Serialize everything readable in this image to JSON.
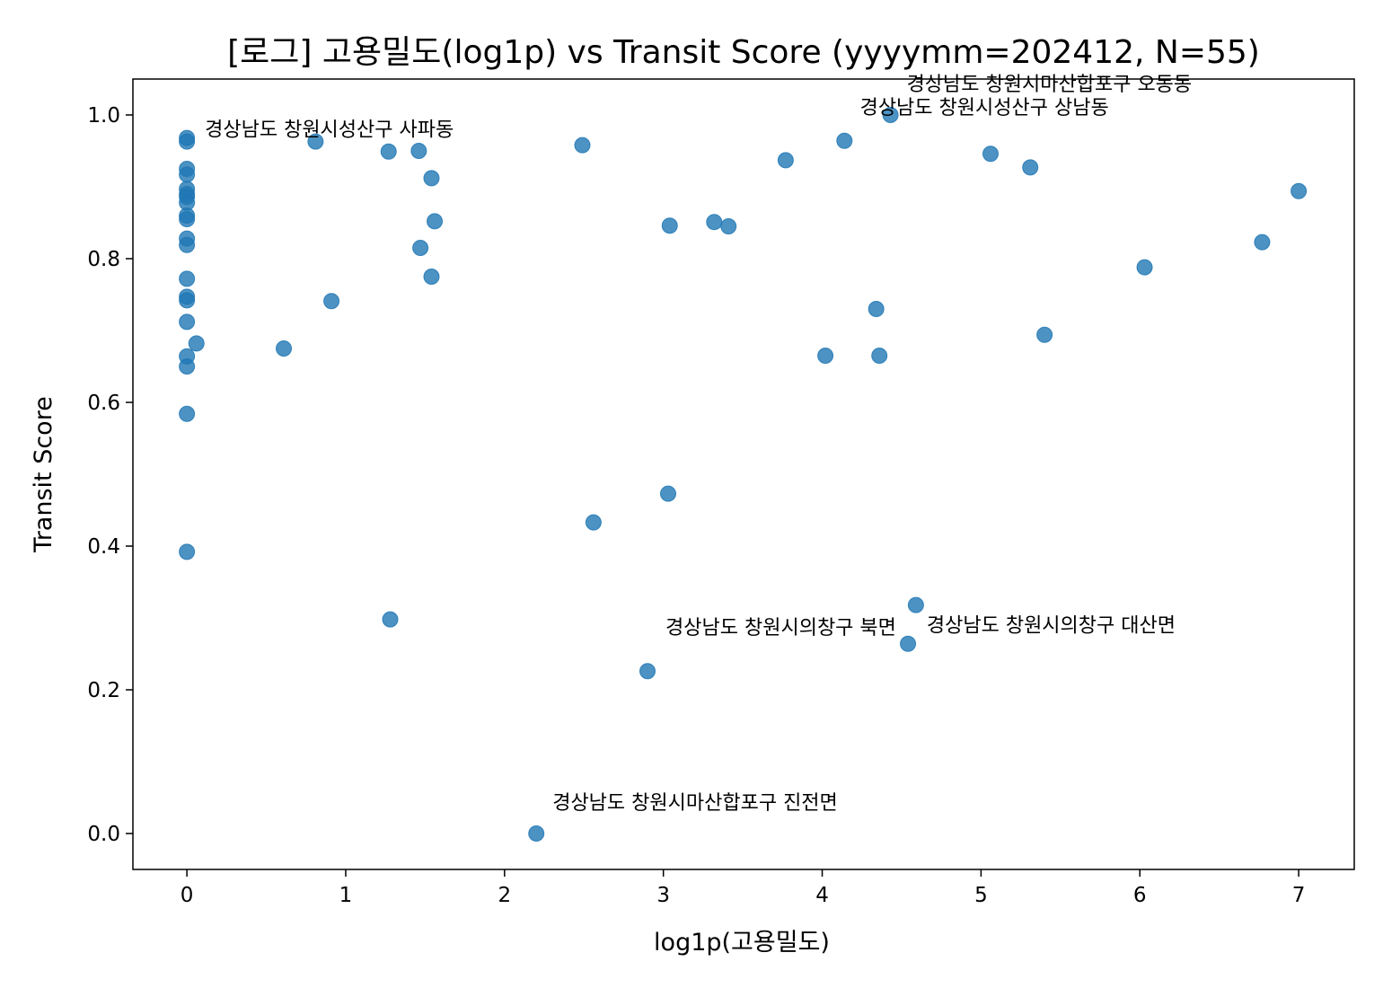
{
  "chart_data": {
    "type": "scatter",
    "title": "[로그] 고용밀도(log1p) vs Transit Score (yyyymm=202412, N=55)",
    "xlabel": "log1p(고용밀도)",
    "ylabel": "Transit Score",
    "xlim": [
      -0.34,
      7.35
    ],
    "ylim": [
      -0.05,
      1.05
    ],
    "xticks": [
      0,
      1,
      2,
      3,
      4,
      5,
      6,
      7
    ],
    "yticks": [
      0.0,
      0.2,
      0.4,
      0.6,
      0.8,
      1.0
    ],
    "xtick_labels": [
      "0",
      "1",
      "2",
      "3",
      "4",
      "5",
      "6",
      "7"
    ],
    "ytick_labels": [
      "0.0",
      "0.2",
      "0.4",
      "0.6",
      "0.8",
      "1.0"
    ],
    "grid": false,
    "colors": {
      "point": "#1f77b4"
    },
    "points": [
      {
        "x": 0.0,
        "y": 0.968
      },
      {
        "x": 0.0,
        "y": 0.963
      },
      {
        "x": 0.0,
        "y": 0.925
      },
      {
        "x": 0.0,
        "y": 0.917
      },
      {
        "x": 0.0,
        "y": 0.897
      },
      {
        "x": 0.0,
        "y": 0.89
      },
      {
        "x": 0.0,
        "y": 0.886
      },
      {
        "x": 0.0,
        "y": 0.878
      },
      {
        "x": 0.0,
        "y": 0.86
      },
      {
        "x": 0.0,
        "y": 0.855
      },
      {
        "x": 0.0,
        "y": 0.828
      },
      {
        "x": 0.0,
        "y": 0.819
      },
      {
        "x": 0.0,
        "y": 0.772
      },
      {
        "x": 0.0,
        "y": 0.747
      },
      {
        "x": 0.0,
        "y": 0.742
      },
      {
        "x": 0.0,
        "y": 0.712
      },
      {
        "x": 0.0,
        "y": 0.664
      },
      {
        "x": 0.0,
        "y": 0.65
      },
      {
        "x": 0.0,
        "y": 0.584
      },
      {
        "x": 0.0,
        "y": 0.392
      },
      {
        "x": 0.06,
        "y": 0.682
      },
      {
        "x": 0.61,
        "y": 0.675
      },
      {
        "x": 0.81,
        "y": 0.963
      },
      {
        "x": 0.91,
        "y": 0.741
      },
      {
        "x": 1.27,
        "y": 0.949
      },
      {
        "x": 1.28,
        "y": 0.298
      },
      {
        "x": 1.46,
        "y": 0.95
      },
      {
        "x": 1.47,
        "y": 0.815
      },
      {
        "x": 1.54,
        "y": 0.912
      },
      {
        "x": 1.54,
        "y": 0.775
      },
      {
        "x": 1.56,
        "y": 0.852
      },
      {
        "x": 2.2,
        "y": 0.0
      },
      {
        "x": 2.49,
        "y": 0.958
      },
      {
        "x": 2.56,
        "y": 0.433
      },
      {
        "x": 2.9,
        "y": 0.226
      },
      {
        "x": 3.03,
        "y": 0.473
      },
      {
        "x": 3.04,
        "y": 0.846
      },
      {
        "x": 3.32,
        "y": 0.851
      },
      {
        "x": 3.41,
        "y": 0.845
      },
      {
        "x": 3.77,
        "y": 0.937
      },
      {
        "x": 4.02,
        "y": 0.665
      },
      {
        "x": 4.14,
        "y": 0.964
      },
      {
        "x": 4.34,
        "y": 0.73
      },
      {
        "x": 4.36,
        "y": 0.665
      },
      {
        "x": 4.43,
        "y": 1.0
      },
      {
        "x": 4.54,
        "y": 0.264
      },
      {
        "x": 4.59,
        "y": 0.318
      },
      {
        "x": 5.06,
        "y": 0.946
      },
      {
        "x": 5.31,
        "y": 0.927
      },
      {
        "x": 5.4,
        "y": 0.694
      },
      {
        "x": 6.03,
        "y": 0.788
      },
      {
        "x": 6.77,
        "y": 0.823
      },
      {
        "x": 7.0,
        "y": 0.894
      }
    ],
    "annotations": [
      {
        "text": "경상남도 창원시성산구 사파동",
        "x": 0.0,
        "y": 0.968
      },
      {
        "text": "경상남도 창원시마산합포구 오동동",
        "x": 4.43,
        "y": 1.0
      },
      {
        "text": "경상남도 창원시성산구 상남동",
        "x": 4.43,
        "y": 1.0
      },
      {
        "text": "경상남도 창원시의창구 대산면",
        "x": 4.59,
        "y": 0.318
      },
      {
        "text": "경상남도 창원시의창구 북면",
        "x": 4.54,
        "y": 0.264
      },
      {
        "text": "경상남도 창원시마산합포구 진전면",
        "x": 2.2,
        "y": 0.0
      }
    ]
  }
}
